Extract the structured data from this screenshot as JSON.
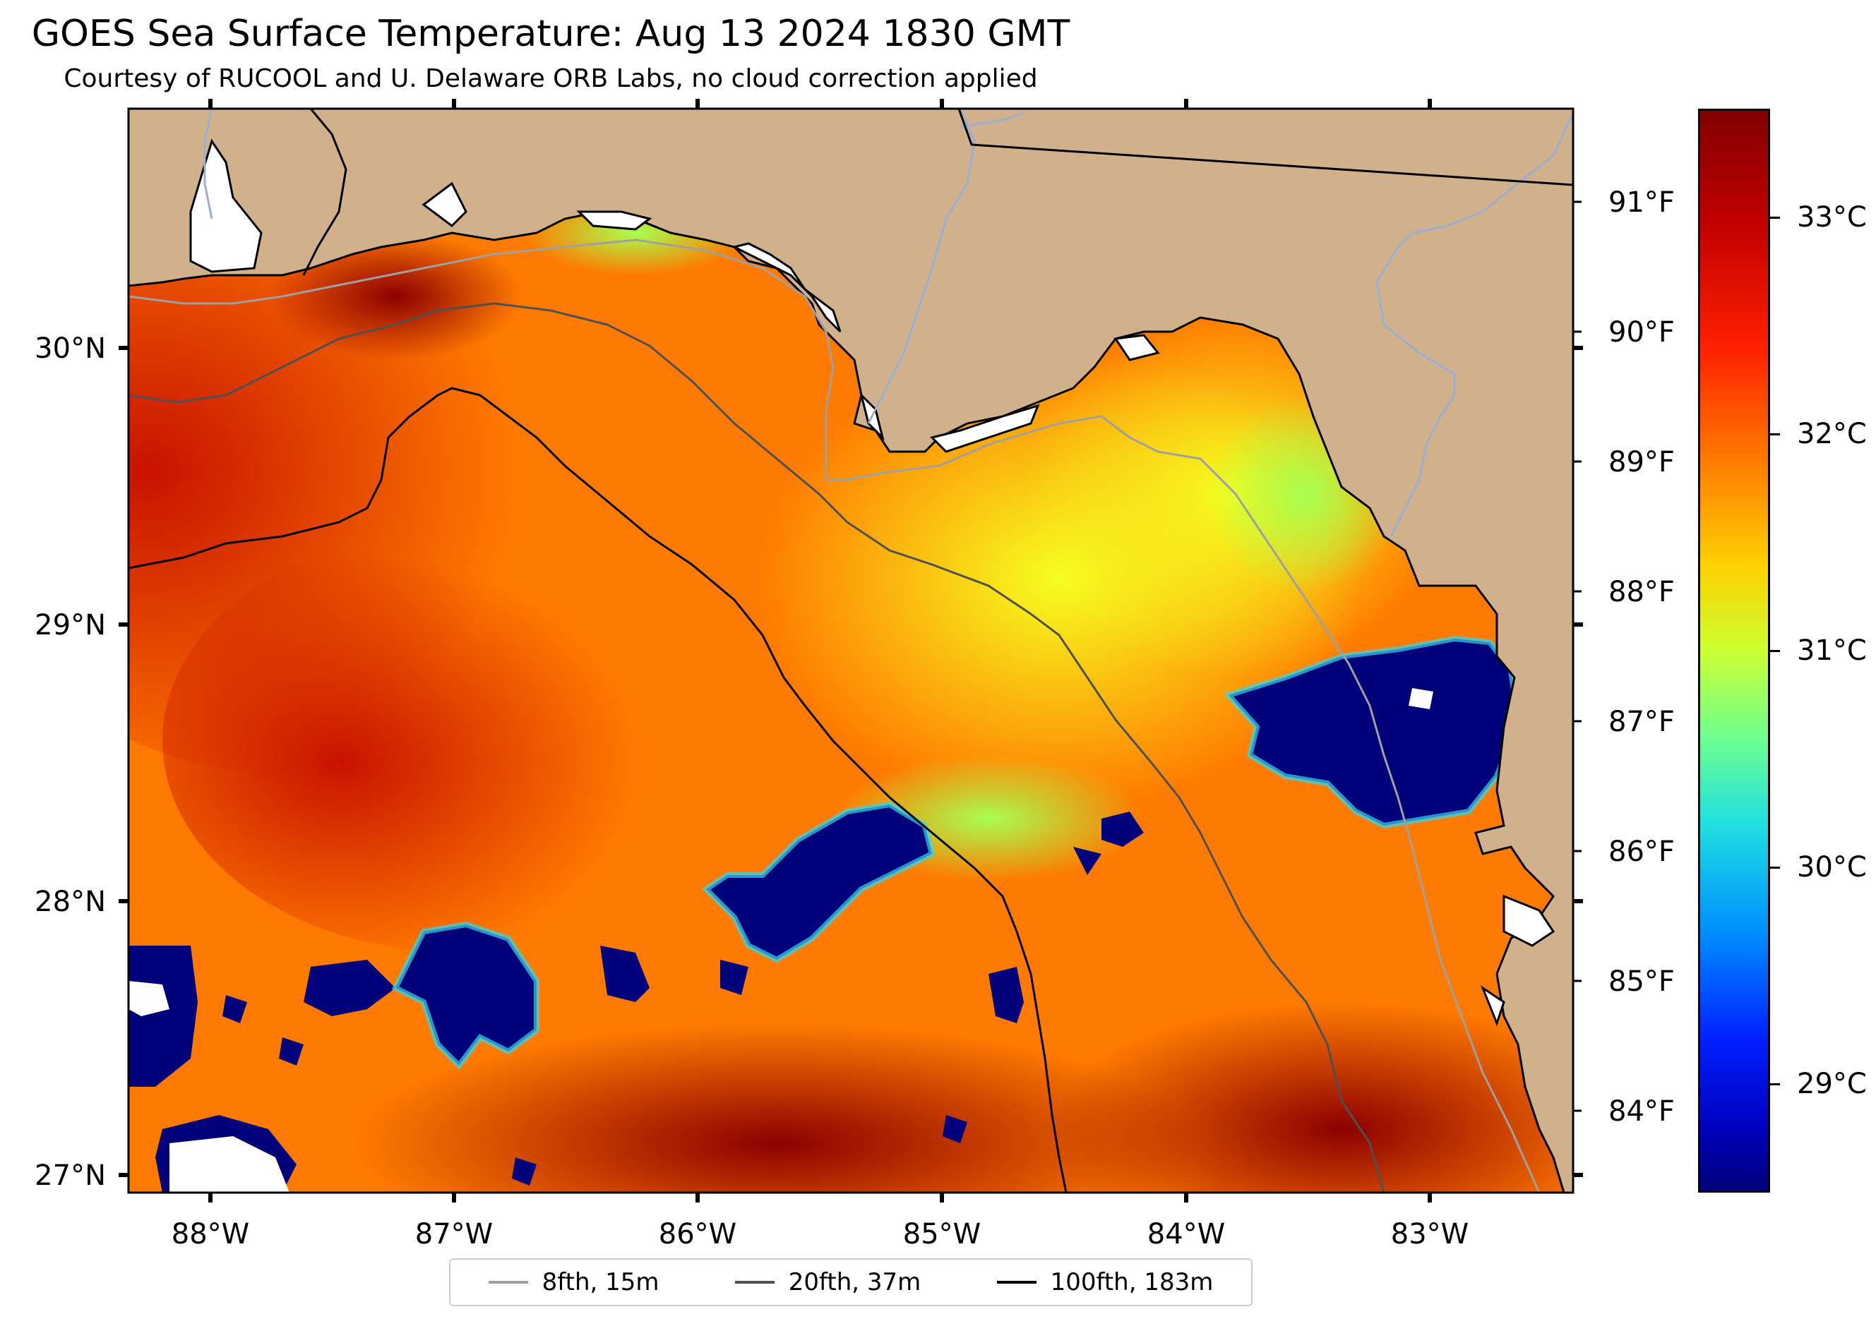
{
  "title": "GOES Sea Surface Temperature: Aug 13 2024 1830 GMT",
  "subtitle": "Courtesy of RUCOOL and U. Delaware ORB Labs, no cloud correction applied",
  "map": {
    "x_ticks": [
      "88°W",
      "87°W",
      "86°W",
      "85°W",
      "84°W",
      "83°W"
    ],
    "y_ticks_left": [
      "30°N",
      "29°N",
      "28°N",
      "27°N"
    ],
    "y_ticks_right": [
      "91°F",
      "90°F",
      "89°F",
      "88°F",
      "87°F",
      "86°F",
      "85°F",
      "84°F"
    ],
    "colors": {
      "land": "#d0b18b",
      "water_warm": "#ff6a00",
      "cloud_mask": "#00007a",
      "no_data": "#ffffff"
    }
  },
  "colorbar": {
    "labels": [
      "33°C",
      "32°C",
      "31°C",
      "30°C",
      "29°C"
    ],
    "values_c": [
      33,
      32,
      31,
      30,
      29
    ],
    "range_c": [
      28.5,
      33.5
    ],
    "colormap": "jet"
  },
  "legend": {
    "items": [
      {
        "label": "8fth, 15m",
        "color": "#a0a0a0"
      },
      {
        "label": "20fth, 37m",
        "color": "#505050"
      },
      {
        "label": "100fth, 183m",
        "color": "#000000"
      }
    ]
  }
}
